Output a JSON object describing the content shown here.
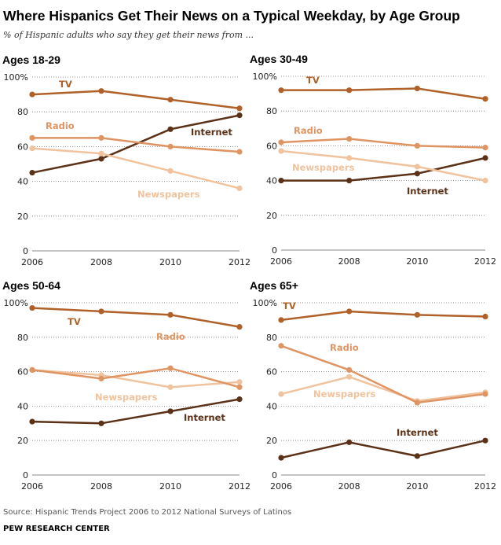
{
  "title": "Where Hispanics Get Their News on a Typical Weekday, by Age Group",
  "subtitle": "% of Hispanic adults who say they get their news from ...",
  "source": "Source: Hispanic Trends Project 2006 to 2012 National Surveys of Latinos",
  "org": "PEW RESEARCH CENTER",
  "colors": {
    "TV": "#b0612a",
    "Radio": "#df9563",
    "Newspapers": "#f0c39e",
    "Internet": "#5b3117"
  },
  "chart_data": [
    {
      "type": "line",
      "title": "Ages 18-29",
      "x": [
        "2006",
        "2008",
        "2010",
        "2012"
      ],
      "ylim": [
        0,
        100
      ],
      "yticks": [
        "0",
        "20",
        "40",
        "60",
        "80",
        "100%"
      ],
      "grid": true,
      "series": [
        {
          "name": "TV",
          "values": [
            90,
            92,
            87,
            82
          ]
        },
        {
          "name": "Radio",
          "values": [
            65,
            65,
            60,
            57
          ]
        },
        {
          "name": "Newspapers",
          "values": [
            59,
            56,
            46,
            36
          ]
        },
        {
          "name": "Internet",
          "values": [
            45,
            53,
            70,
            78
          ]
        }
      ]
    },
    {
      "type": "line",
      "title": "Ages 30-49",
      "x": [
        "2006",
        "2008",
        "2010",
        "2012"
      ],
      "ylim": [
        0,
        100
      ],
      "yticks": [
        "0",
        "20",
        "40",
        "60",
        "80",
        "100%"
      ],
      "grid": true,
      "series": [
        {
          "name": "TV",
          "values": [
            92,
            92,
            93,
            87
          ]
        },
        {
          "name": "Radio",
          "values": [
            62,
            64,
            60,
            59
          ]
        },
        {
          "name": "Newspapers",
          "values": [
            57,
            53,
            48,
            40
          ]
        },
        {
          "name": "Internet",
          "values": [
            40,
            40,
            44,
            53
          ]
        }
      ]
    },
    {
      "type": "line",
      "title": "Ages 50-64",
      "x": [
        "2006",
        "2008",
        "2010",
        "2012"
      ],
      "ylim": [
        0,
        100
      ],
      "yticks": [
        "0",
        "20",
        "40",
        "60",
        "80",
        "100%"
      ],
      "grid": true,
      "series": [
        {
          "name": "TV",
          "values": [
            97,
            95,
            93,
            86
          ]
        },
        {
          "name": "Radio",
          "values": [
            61,
            56,
            62,
            51
          ]
        },
        {
          "name": "Newspapers",
          "values": [
            61,
            58,
            51,
            54
          ]
        },
        {
          "name": "Internet",
          "values": [
            31,
            30,
            37,
            44
          ]
        }
      ]
    },
    {
      "type": "line",
      "title": "Ages 65+",
      "x": [
        "2006",
        "2008",
        "2010",
        "2012"
      ],
      "ylim": [
        0,
        100
      ],
      "yticks": [
        "0",
        "20",
        "40",
        "60",
        "80",
        "100%"
      ],
      "grid": true,
      "series": [
        {
          "name": "TV",
          "values": [
            90,
            95,
            93,
            92
          ]
        },
        {
          "name": "Radio",
          "values": [
            75,
            61,
            42,
            47
          ]
        },
        {
          "name": "Newspapers",
          "values": [
            47,
            57,
            43,
            48
          ]
        },
        {
          "name": "Internet",
          "values": [
            10,
            19,
            11,
            20
          ]
        }
      ]
    }
  ]
}
